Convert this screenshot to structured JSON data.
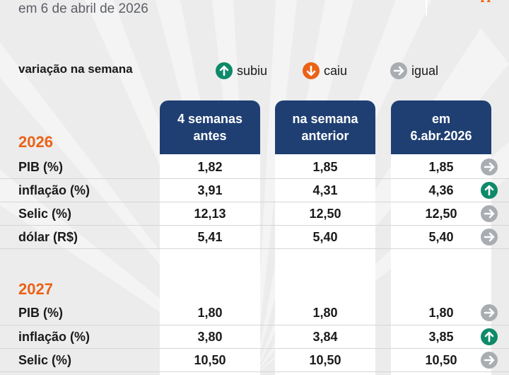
{
  "header": {
    "date_line": "em 6 de abril de 2026"
  },
  "legend": {
    "title": "variação na semana",
    "items": [
      {
        "key": "up",
        "label": "subiu",
        "icon": "arrow-up-icon",
        "color": "#0e8a6a"
      },
      {
        "key": "down",
        "label": "caiu",
        "icon": "arrow-down-icon",
        "color": "#ea6216"
      },
      {
        "key": "same",
        "label": "igual",
        "icon": "arrow-right-icon",
        "color": "#a9adb2"
      }
    ]
  },
  "columns": {
    "c1": {
      "line1": "4 semanas",
      "line2": "antes"
    },
    "c2": {
      "line1": "na semana",
      "line2": "anterior"
    },
    "c3": {
      "line1": "em",
      "line2": "6.abr.2026"
    }
  },
  "sections": [
    {
      "year": "2026",
      "rows": [
        {
          "label": "PIB (%)",
          "v1": "1,82",
          "v2": "1,85",
          "v3": "1,85",
          "change": "same"
        },
        {
          "label": "inflação (%)",
          "v1": "3,91",
          "v2": "4,31",
          "v3": "4,36",
          "change": "up"
        },
        {
          "label": "Selic (%)",
          "v1": "12,13",
          "v2": "12,50",
          "v3": "12,50",
          "change": "same"
        },
        {
          "label": "dólar (R$)",
          "v1": "5,41",
          "v2": "5,40",
          "v3": "5,40",
          "change": "same"
        }
      ]
    },
    {
      "year": "2027",
      "rows": [
        {
          "label": "PIB (%)",
          "v1": "1,80",
          "v2": "1,80",
          "v3": "1,80",
          "change": "same"
        },
        {
          "label": "inflação (%)",
          "v1": "3,80",
          "v2": "3,84",
          "v3": "3,85",
          "change": "up"
        },
        {
          "label": "Selic (%)",
          "v1": "10,50",
          "v2": "10,50",
          "v3": "10,50",
          "change": "same"
        }
      ]
    }
  ],
  "colors": {
    "header_blue": "#1f3f73",
    "year_orange": "#ea6216",
    "background": "#ececec"
  }
}
